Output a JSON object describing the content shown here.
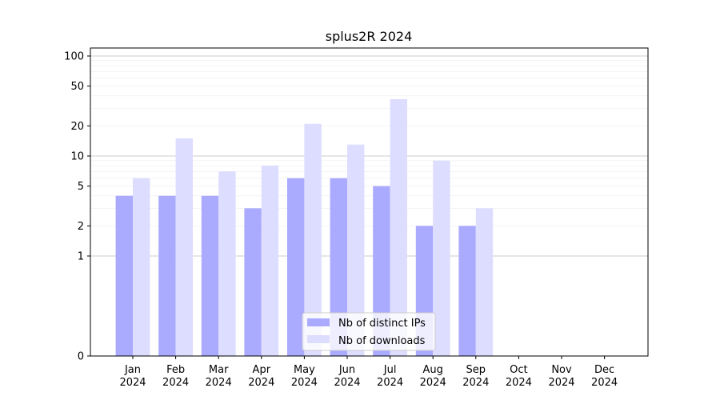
{
  "chart_data": {
    "type": "bar",
    "title": "splus2R 2024",
    "xlabel": "",
    "ylabel": "",
    "yscale": "symlog",
    "ylim": [
      0,
      120
    ],
    "yticks": [
      0,
      1,
      2,
      5,
      10,
      20,
      50,
      100
    ],
    "categories": [
      [
        "Jan",
        "2024"
      ],
      [
        "Feb",
        "2024"
      ],
      [
        "Mar",
        "2024"
      ],
      [
        "Apr",
        "2024"
      ],
      [
        "May",
        "2024"
      ],
      [
        "Jun",
        "2024"
      ],
      [
        "Jul",
        "2024"
      ],
      [
        "Aug",
        "2024"
      ],
      [
        "Sep",
        "2024"
      ],
      [
        "Oct",
        "2024"
      ],
      [
        "Nov",
        "2024"
      ],
      [
        "Dec",
        "2024"
      ]
    ],
    "series": [
      {
        "name": "Nb of distinct IPs",
        "color": "#aaaaff",
        "values": [
          4,
          4,
          4,
          3,
          6,
          6,
          5,
          2,
          2,
          0,
          0,
          0
        ]
      },
      {
        "name": "Nb of downloads",
        "color": "#ddddff",
        "values": [
          6,
          15,
          7,
          8,
          21,
          13,
          37,
          9,
          3,
          0,
          0,
          0
        ]
      }
    ],
    "grid": true,
    "legend_position": "bottom-center"
  }
}
